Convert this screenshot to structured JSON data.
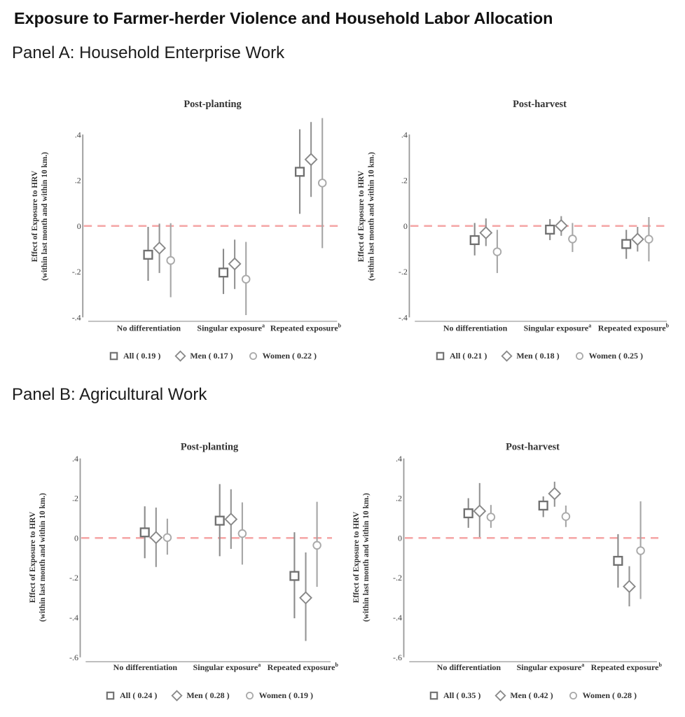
{
  "header": {
    "title": "Exposure to Farmer-herder Violence and Household Labor Allocation"
  },
  "panels": [
    {
      "id": "A",
      "label": "Panel A: Household Enterprise Work"
    },
    {
      "id": "B",
      "label": "Panel B: Agricultural Work"
    }
  ],
  "colors": {
    "background": "#ffffff",
    "zero_line": "#f5a8a8",
    "y_axis": "#989898",
    "x_axis": "#b5b5b5",
    "tick_text": "#444444",
    "label_text": "#333333",
    "series_all": "#6f6f6f",
    "series_all_ci": "#8b8b8b",
    "series_men": "#888888",
    "series_men_ci": "#949494",
    "series_women": "#a9a9a9",
    "series_women_ci": "#a6a6a6"
  },
  "chart_data": [
    {
      "type": "scatter",
      "panel": "A",
      "title": "Post-planting",
      "ylabel": [
        "Effect of Exposure to HRV",
        "(within last month and within 10 km.)"
      ],
      "ylim": [
        -0.4,
        0.4
      ],
      "yticks": [
        {
          "v": 0.4,
          "label": ".4"
        },
        {
          "v": 0.2,
          "label": ".2"
        },
        {
          "v": 0.0,
          "label": "0"
        },
        {
          "v": -0.2,
          "label": "-.2"
        },
        {
          "v": -0.4,
          "label": "-.4"
        }
      ],
      "zero_line": 0,
      "categories": [
        {
          "text": "No differentiation",
          "sup": ""
        },
        {
          "text": "Singular exposure",
          "sup": "a"
        },
        {
          "text": "Repeated exposure",
          "sup": "b"
        }
      ],
      "series": [
        {
          "name": "All",
          "marker": "square",
          "legend": "All ( 0.19 )",
          "estimates": [
            -0.126,
            -0.204,
            0.237
          ],
          "ci_low": [
            -0.24,
            -0.298,
            0.053
          ],
          "ci_high": [
            -0.004,
            -0.1,
            0.423
          ]
        },
        {
          "name": "Men",
          "marker": "diamond",
          "legend": "Men ( 0.17 )",
          "estimates": [
            -0.097,
            -0.166,
            0.291
          ],
          "ci_low": [
            -0.206,
            -0.276,
            0.127
          ],
          "ci_high": [
            0.01,
            -0.06,
            0.455
          ]
        },
        {
          "name": "Women",
          "marker": "circle",
          "legend": "Women ( 0.22 )",
          "estimates": [
            -0.151,
            -0.233,
            0.188
          ],
          "ci_low": [
            -0.312,
            -0.39,
            -0.097
          ],
          "ci_high": [
            0.012,
            -0.07,
            0.472
          ]
        }
      ]
    },
    {
      "type": "scatter",
      "panel": "A",
      "title": "Post-harvest",
      "ylabel": [
        "Effect of Exposure to HRV",
        "(within last month and within 10 km.)"
      ],
      "ylim": [
        -0.4,
        0.4
      ],
      "yticks": [
        {
          "v": 0.4,
          "label": ".4"
        },
        {
          "v": 0.2,
          "label": ".2"
        },
        {
          "v": 0.0,
          "label": "0"
        },
        {
          "v": -0.2,
          "label": "-.2"
        },
        {
          "v": -0.4,
          "label": "-.4"
        }
      ],
      "zero_line": 0,
      "categories": [
        {
          "text": "No differentiation",
          "sup": ""
        },
        {
          "text": "Singular exposure",
          "sup": "a"
        },
        {
          "text": "Repeated exposure",
          "sup": "b"
        }
      ],
      "series": [
        {
          "name": "All",
          "marker": "square",
          "legend": "All ( 0.21 )",
          "estimates": [
            -0.062,
            -0.016,
            -0.079
          ],
          "ci_low": [
            -0.129,
            -0.062,
            -0.144
          ],
          "ci_high": [
            0.013,
            0.03,
            -0.017
          ]
        },
        {
          "name": "Men",
          "marker": "diamond",
          "legend": "Men ( 0.18 )",
          "estimates": [
            -0.03,
            0.001,
            -0.058
          ],
          "ci_low": [
            -0.088,
            -0.043,
            -0.112
          ],
          "ci_high": [
            0.033,
            0.043,
            -0.004
          ]
        },
        {
          "name": "Women",
          "marker": "circle",
          "legend": "Women ( 0.25 )",
          "estimates": [
            -0.113,
            -0.057,
            -0.058
          ],
          "ci_low": [
            -0.206,
            -0.114,
            -0.155
          ],
          "ci_high": [
            -0.017,
            0.013,
            0.039
          ]
        }
      ]
    },
    {
      "type": "scatter",
      "panel": "B",
      "title": "Post-planting",
      "ylabel": [
        "Effect of Exposure to HRV",
        "(within last month and within 10 km.)"
      ],
      "ylim": [
        -0.6,
        0.4
      ],
      "yticks": [
        {
          "v": 0.4,
          "label": ".4"
        },
        {
          "v": 0.2,
          "label": ".2"
        },
        {
          "v": 0.0,
          "label": "0"
        },
        {
          "v": -0.2,
          "label": "-.2"
        },
        {
          "v": -0.4,
          "label": "-.4"
        },
        {
          "v": -0.6,
          "label": "-.6"
        }
      ],
      "zero_line": 0,
      "categories": [
        {
          "text": "No differentiation",
          "sup": ""
        },
        {
          "text": "Singular exposure",
          "sup": "a"
        },
        {
          "text": "Repeated exposure",
          "sup": "b"
        }
      ],
      "series": [
        {
          "name": "All",
          "marker": "square",
          "legend": "All ( 0.24 )",
          "estimates": [
            0.028,
            0.087,
            -0.191
          ],
          "ci_low": [
            -0.102,
            -0.092,
            -0.404
          ],
          "ci_high": [
            0.159,
            0.271,
            0.029
          ]
        },
        {
          "name": "Men",
          "marker": "diamond",
          "legend": "Men ( 0.28 )",
          "estimates": [
            0.002,
            0.094,
            -0.301
          ],
          "ci_low": [
            -0.146,
            -0.055,
            -0.518
          ],
          "ci_high": [
            0.153,
            0.245,
            -0.073
          ]
        },
        {
          "name": "Women",
          "marker": "circle",
          "legend": "Women ( 0.19 )",
          "estimates": [
            0.002,
            0.022,
            -0.037
          ],
          "ci_low": [
            -0.084,
            -0.134,
            -0.246
          ],
          "ci_high": [
            0.097,
            0.179,
            0.182
          ]
        }
      ]
    },
    {
      "type": "scatter",
      "panel": "B",
      "title": "Post-harvest",
      "ylabel": [
        "Effect of Exposure to HRV",
        "(within last month and within 10 km.)"
      ],
      "ylim": [
        -0.6,
        0.4
      ],
      "yticks": [
        {
          "v": 0.4,
          "label": ".4"
        },
        {
          "v": 0.2,
          "label": ".2"
        },
        {
          "v": 0.0,
          "label": "0"
        },
        {
          "v": -0.2,
          "label": "-.2"
        },
        {
          "v": -0.4,
          "label": "-.4"
        },
        {
          "v": -0.6,
          "label": "-.6"
        }
      ],
      "zero_line": 0,
      "categories": [
        {
          "text": "No differentiation",
          "sup": ""
        },
        {
          "text": "Singular exposure",
          "sup": "a"
        },
        {
          "text": "Repeated exposure",
          "sup": "b"
        }
      ],
      "series": [
        {
          "name": "All",
          "marker": "square",
          "legend": "All ( 0.35 )",
          "estimates": [
            0.124,
            0.163,
            -0.115
          ],
          "ci_low": [
            0.051,
            0.105,
            -0.25
          ],
          "ci_high": [
            0.2,
            0.209,
            0.019
          ]
        },
        {
          "name": "Men",
          "marker": "diamond",
          "legend": "Men ( 0.42 )",
          "estimates": [
            0.135,
            0.223,
            -0.244
          ],
          "ci_low": [
            0.004,
            0.157,
            -0.344
          ],
          "ci_high": [
            0.276,
            0.283,
            -0.142
          ]
        },
        {
          "name": "Women",
          "marker": "circle",
          "legend": "Women ( 0.28 )",
          "estimates": [
            0.105,
            0.108,
            -0.064
          ],
          "ci_low": [
            0.051,
            0.055,
            -0.307
          ],
          "ci_high": [
            0.166,
            0.163,
            0.184
          ]
        }
      ]
    }
  ]
}
